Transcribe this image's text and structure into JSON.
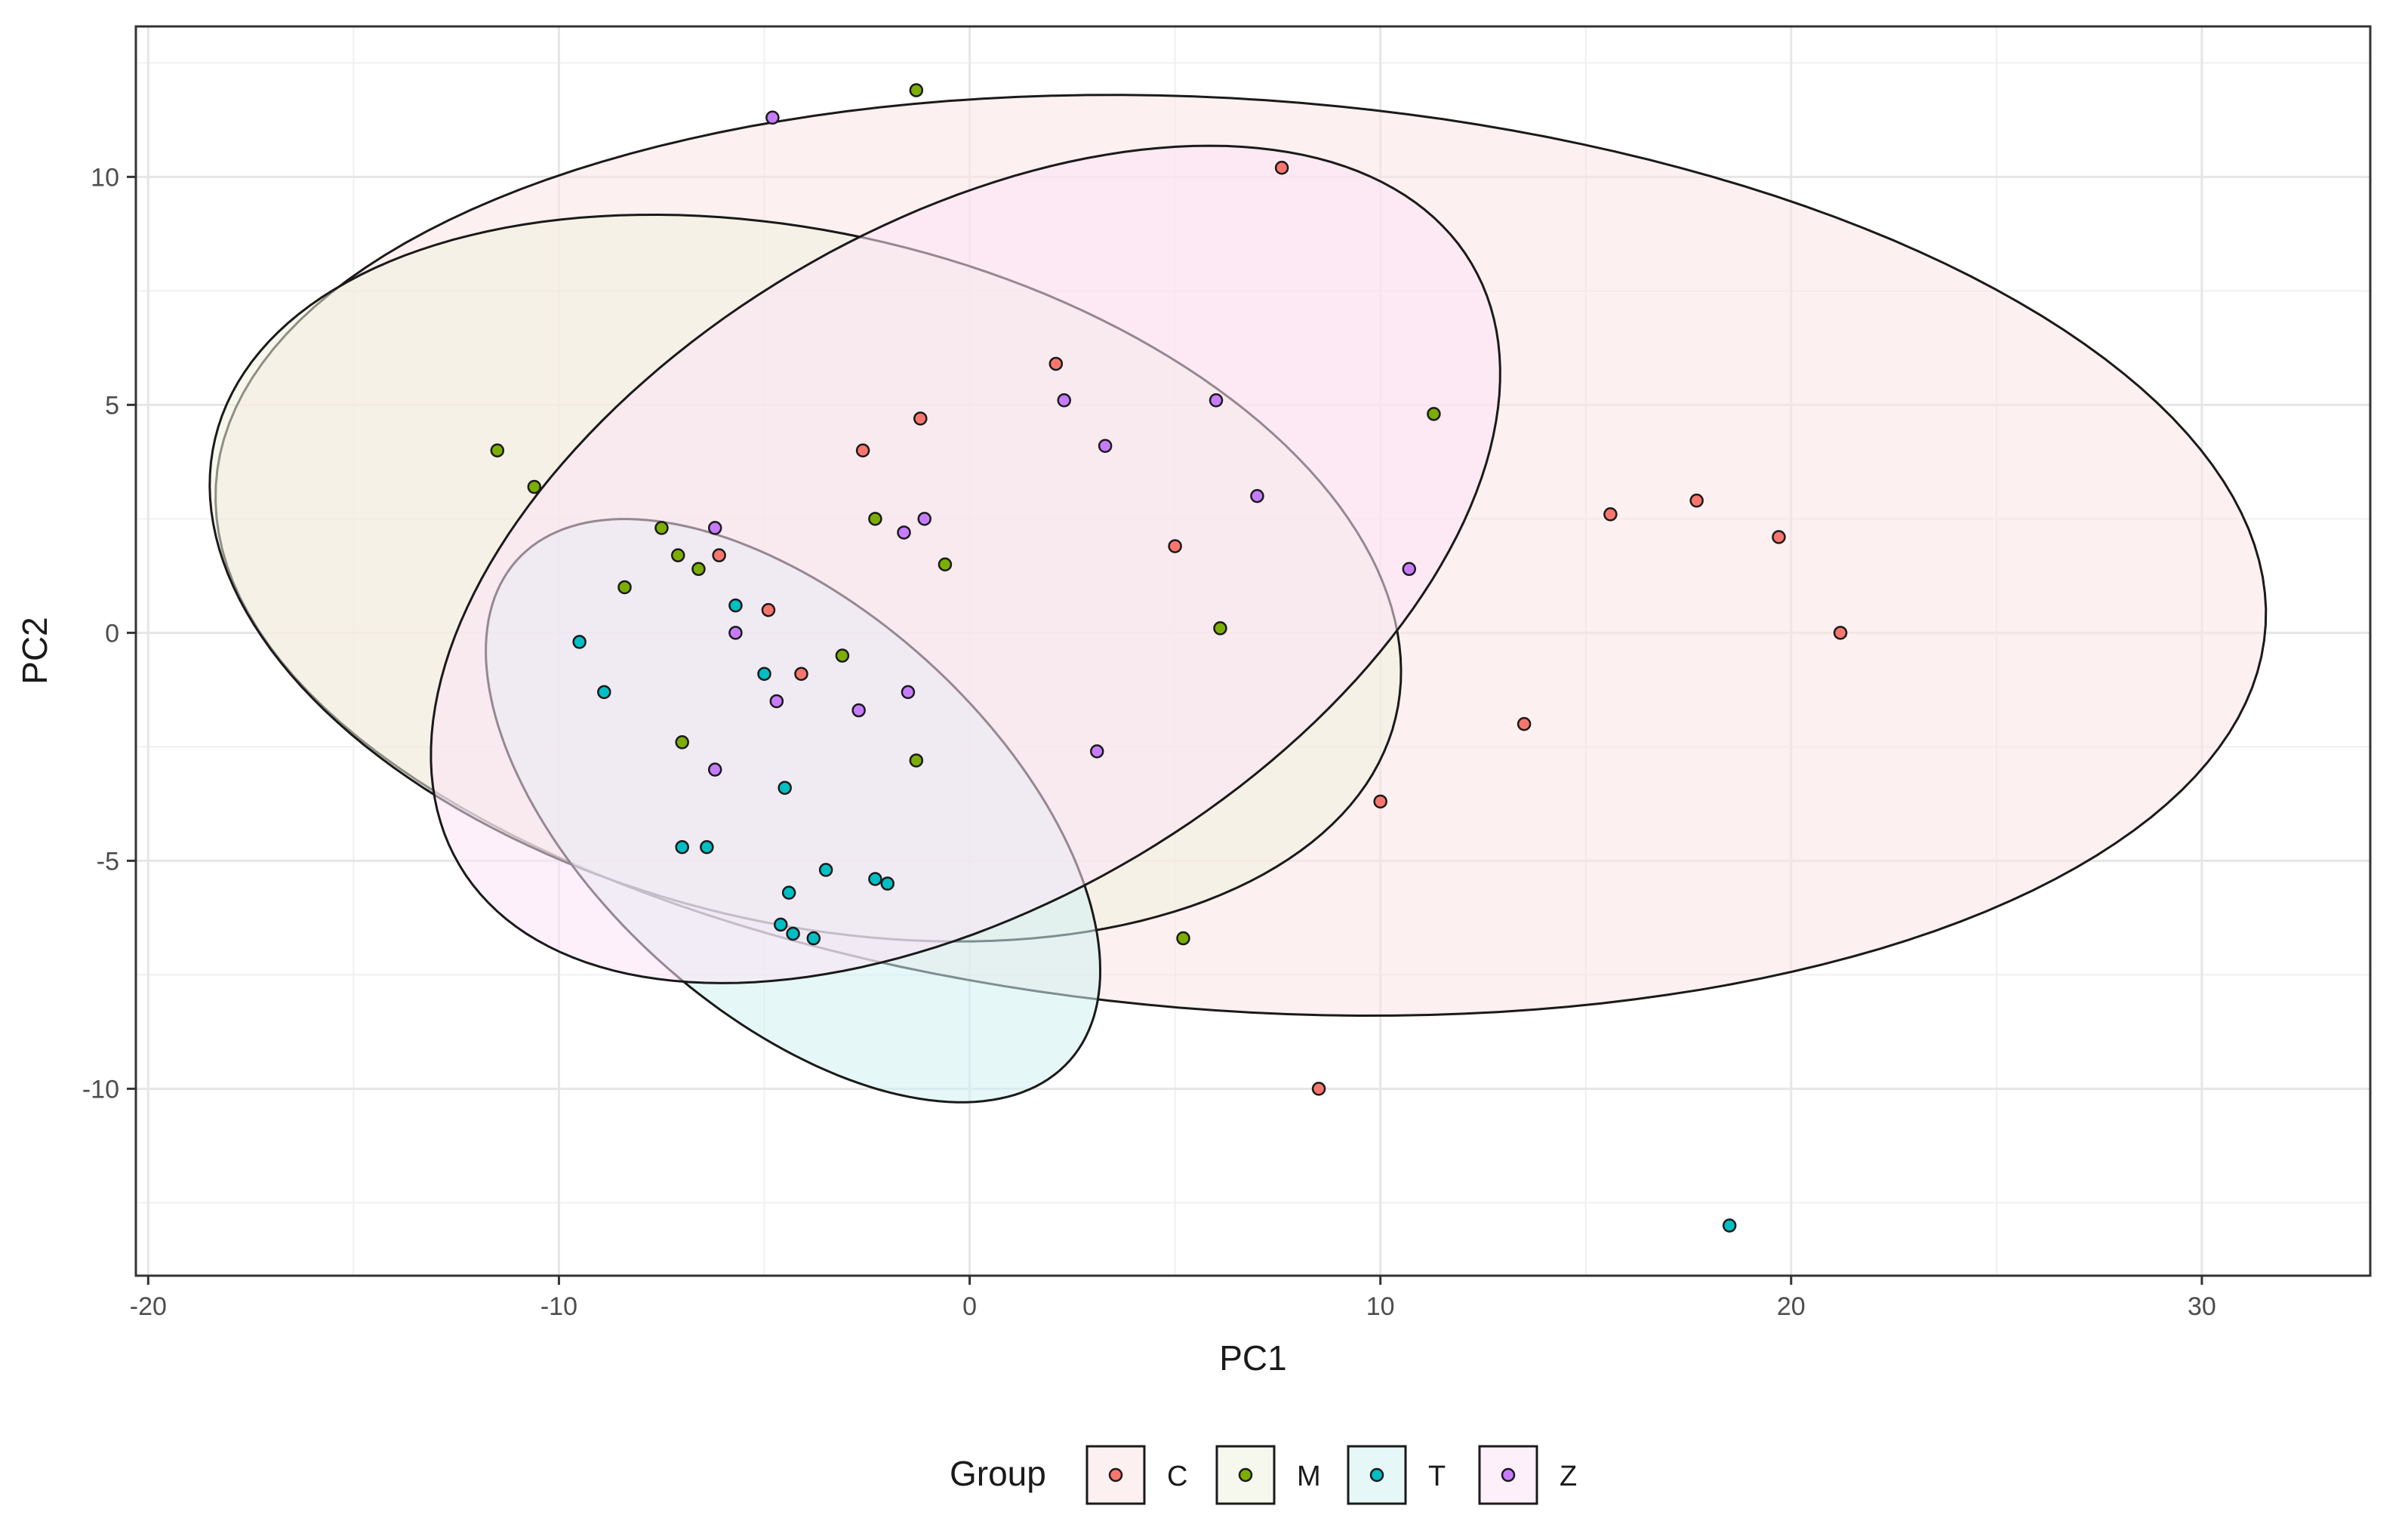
{
  "chart_data": {
    "type": "scatter",
    "xlabel": "PC1",
    "ylabel": "PC2",
    "xlim": [
      -20.3,
      34.1
    ],
    "ylim": [
      -14.1,
      13.3
    ],
    "xticks": [
      -20,
      -10,
      0,
      10,
      20,
      30
    ],
    "yticks": [
      -10,
      -5,
      0,
      5,
      10
    ],
    "xtick_labels": [
      "-20",
      "-10",
      "0",
      "10",
      "20",
      "30"
    ],
    "ytick_labels": [
      "-10",
      "-5",
      "0",
      "5",
      "10"
    ],
    "grid": true,
    "legend": {
      "title": "Group",
      "position": "bottom"
    },
    "series": [
      {
        "name": "C",
        "color": "#F8766D",
        "fill": "#fbe3e3",
        "points": [
          [
            -4.9,
            0.5
          ],
          [
            -4.1,
            -0.9
          ],
          [
            -6.1,
            1.7
          ],
          [
            -2.6,
            4.0
          ],
          [
            -1.2,
            4.7
          ],
          [
            2.1,
            5.9
          ],
          [
            5.0,
            1.9
          ],
          [
            7.6,
            10.2
          ],
          [
            15.6,
            2.6
          ],
          [
            17.7,
            2.9
          ],
          [
            19.7,
            2.1
          ],
          [
            21.2,
            0.0
          ],
          [
            13.5,
            -2.0
          ],
          [
            10.0,
            -3.7
          ],
          [
            8.5,
            -10.0
          ]
        ],
        "ellipse": {
          "center": [
            6.6,
            1.7
          ],
          "semi_axes": [
            25.0,
            10.0
          ],
          "angle_deg": -3.5
        }
      },
      {
        "name": "M",
        "color": "#7CAE00",
        "fill": "#f1f3df",
        "points": [
          [
            -1.3,
            11.9
          ],
          [
            -11.5,
            4.0
          ],
          [
            -10.6,
            3.2
          ],
          [
            -7.5,
            2.3
          ],
          [
            -7.1,
            1.7
          ],
          [
            -6.6,
            1.4
          ],
          [
            -8.4,
            1.0
          ],
          [
            -2.3,
            2.5
          ],
          [
            -0.6,
            1.5
          ],
          [
            -3.1,
            -0.5
          ],
          [
            -7.0,
            -2.4
          ],
          [
            -1.3,
            -2.8
          ],
          [
            6.1,
            0.1
          ],
          [
            11.3,
            4.8
          ],
          [
            5.2,
            -6.7
          ]
        ],
        "ellipse": {
          "center": [
            -4.0,
            1.2
          ],
          "semi_axes": [
            14.7,
            7.6
          ],
          "angle_deg": -11
        }
      },
      {
        "name": "T",
        "color": "#00BFC4",
        "fill": "#d2f1f2",
        "points": [
          [
            -9.5,
            -0.2
          ],
          [
            -8.9,
            -1.3
          ],
          [
            -5.7,
            0.6
          ],
          [
            -5.0,
            -0.9
          ],
          [
            -4.5,
            -3.4
          ],
          [
            -7.0,
            -4.7
          ],
          [
            -6.4,
            -4.7
          ],
          [
            -3.5,
            -5.2
          ],
          [
            -4.4,
            -5.7
          ],
          [
            -2.3,
            -5.4
          ],
          [
            -2.0,
            -5.5
          ],
          [
            -4.6,
            -6.4
          ],
          [
            -4.3,
            -6.6
          ],
          [
            -3.8,
            -6.7
          ],
          [
            18.5,
            -13.0
          ]
        ],
        "ellipse": {
          "center": [
            -4.3,
            -3.9
          ],
          "semi_axes": [
            8.7,
            4.6
          ],
          "angle_deg": -37
        }
      },
      {
        "name": "Z",
        "color": "#C77CFF",
        "fill": "#fbe3f5",
        "points": [
          [
            -4.8,
            11.3
          ],
          [
            2.3,
            5.1
          ],
          [
            6.0,
            5.1
          ],
          [
            3.3,
            4.1
          ],
          [
            7.0,
            3.0
          ],
          [
            -6.2,
            2.3
          ],
          [
            -1.1,
            2.5
          ],
          [
            -1.6,
            2.2
          ],
          [
            10.7,
            1.4
          ],
          [
            -5.7,
            0.0
          ],
          [
            -4.7,
            -1.5
          ],
          [
            -1.5,
            -1.3
          ],
          [
            -2.7,
            -1.7
          ],
          [
            -6.2,
            -3.0
          ],
          [
            3.1,
            -2.6
          ]
        ],
        "ellipse": {
          "center": [
            -0.1,
            1.5
          ],
          "semi_axes": [
            14.0,
            7.6
          ],
          "angle_deg": 26
        }
      }
    ]
  }
}
